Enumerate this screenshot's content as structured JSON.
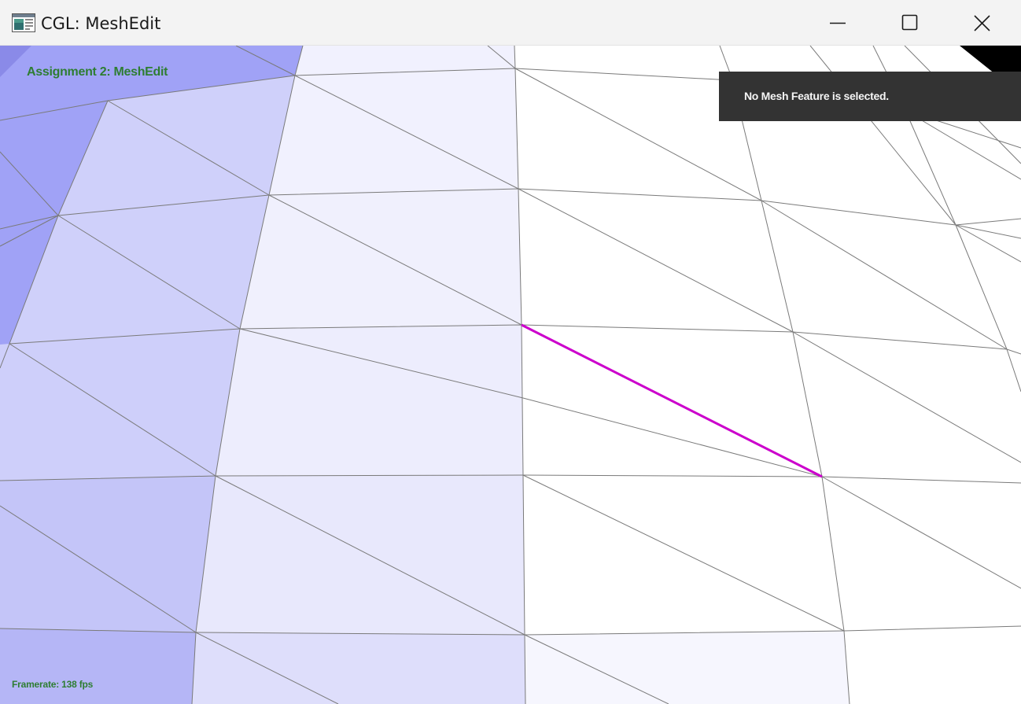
{
  "window": {
    "title": "CGL: MeshEdit",
    "icon": "app-window-icon",
    "controls": {
      "minimize_icon": "minimize-icon",
      "maximize_icon": "maximize-icon",
      "close_icon": "close-icon"
    }
  },
  "viewport": {
    "assignment_title": "Assignment 2: MeshEdit",
    "framerate": "Framerate: 138 fps",
    "selection_info": "No Mesh Feature is selected.",
    "colors": {
      "overlay_text": "#2e7d32",
      "selected_edge": "#cc00cc",
      "wireframe": "#7a7a7a",
      "panel_bg": "#333333"
    }
  }
}
